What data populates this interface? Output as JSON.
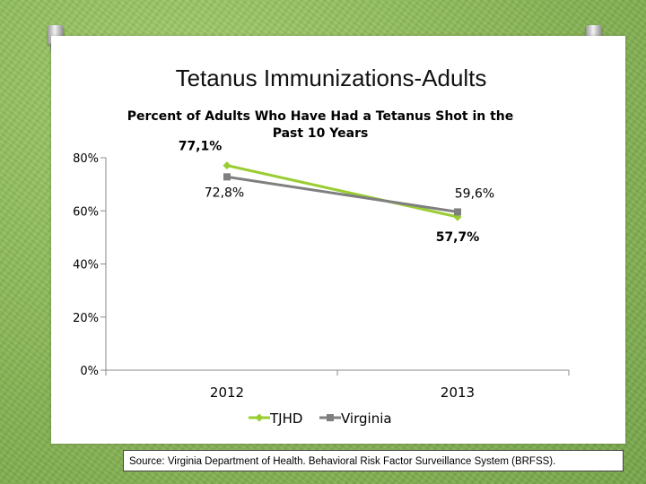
{
  "slide": {
    "title": "Tetanus Immunizations-Adults",
    "source": "Source: Virginia Department of Health. Behavioral Risk Factor Surveillance System (BRFSS)."
  },
  "colors": {
    "tjhd": "#9acd32",
    "virginia": "#7f7f7f",
    "axis": "#888888"
  },
  "chart_data": {
    "type": "line",
    "title_lines": [
      "Percent of Adults Who Have Had a Tetanus Shot in the",
      "Past 10 Years"
    ],
    "categories": [
      "2012",
      "2013"
    ],
    "y_ticks": [
      "0%",
      "20%",
      "40%",
      "60%",
      "80%"
    ],
    "ylim": [
      0,
      80
    ],
    "series": [
      {
        "name": "TJHD",
        "values": [
          77.1,
          57.7
        ],
        "labels": [
          "77,1%",
          "57,7%"
        ]
      },
      {
        "name": "Virginia",
        "values": [
          72.8,
          59.6
        ],
        "labels": [
          "72,8%",
          "59,6%"
        ]
      }
    ],
    "legend_position": "bottom"
  }
}
